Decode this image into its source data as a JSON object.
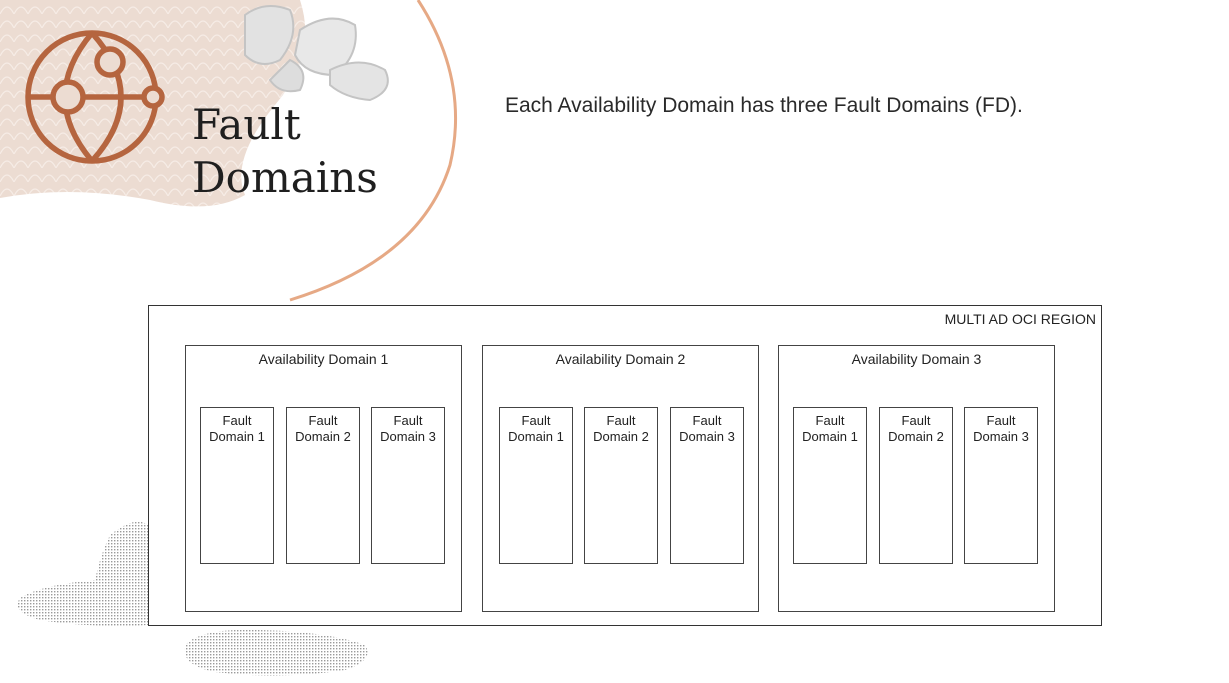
{
  "slide": {
    "title_line1": "Fault",
    "title_line2": "Domains",
    "subtitle": "Each Availability Domain has three Fault Domains (FD).",
    "icon": "globe-network-icon"
  },
  "diagram": {
    "region_label": "MULTI AD OCI REGION",
    "availability_domains": [
      {
        "label": "Availability Domain 1",
        "fault_domains": [
          {
            "line1": "Fault",
            "line2": "Domain 1"
          },
          {
            "line1": "Fault",
            "line2": "Domain 2"
          },
          {
            "line1": "Fault",
            "line2": "Domain 3"
          }
        ]
      },
      {
        "label": "Availability Domain 2",
        "fault_domains": [
          {
            "line1": "Fault",
            "line2": "Domain 1"
          },
          {
            "line1": "Fault",
            "line2": "Domain 2"
          },
          {
            "line1": "Fault",
            "line2": "Domain 3"
          }
        ]
      },
      {
        "label": "Availability Domain 3",
        "fault_domains": [
          {
            "line1": "Fault",
            "line2": "Domain 1"
          },
          {
            "line1": "Fault",
            "line2": "Domain 2"
          },
          {
            "line1": "Fault",
            "line2": "Domain 3"
          }
        ]
      }
    ]
  },
  "colors": {
    "accent": "#b5653f",
    "accent_light": "#e6a985",
    "blob": "#ecdcd2",
    "border": "#333333"
  }
}
